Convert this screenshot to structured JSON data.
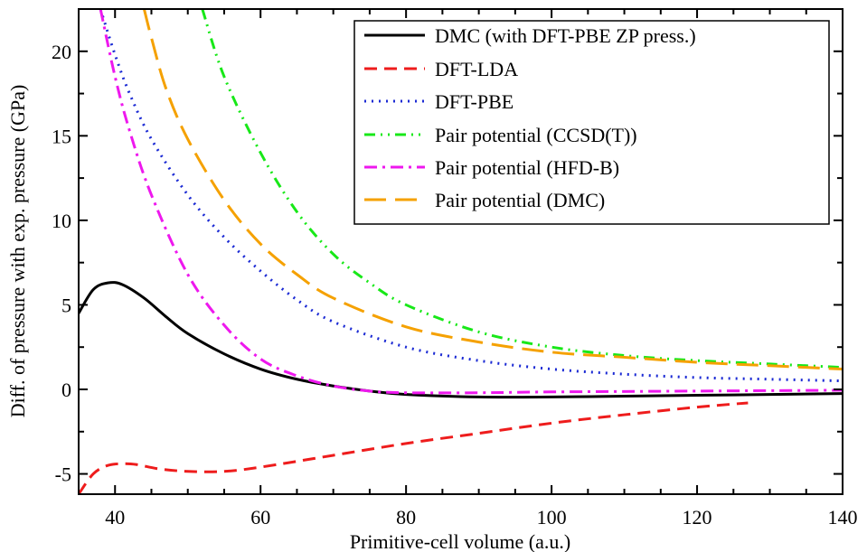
{
  "chart_data": {
    "type": "line",
    "title": "",
    "xlabel": "Primitive-cell volume (a.u.)",
    "ylabel": "Diff. of pressure with exp. pressure (GPa)",
    "xlim": [
      35,
      140
    ],
    "ylim": [
      -6.2,
      22.5
    ],
    "x_ticks": [
      40,
      60,
      80,
      100,
      120,
      140
    ],
    "y_ticks": [
      -5,
      0,
      5,
      10,
      15,
      20
    ],
    "x_tick_labels": [
      "40",
      "60",
      "80",
      "100",
      "120",
      "140"
    ],
    "y_tick_labels": [
      "-5",
      "0",
      "5",
      "10",
      "15",
      "20"
    ],
    "grid": false,
    "legend_position": "top-right",
    "series": [
      {
        "name": "DMC (with DFT-PBE ZP press.)",
        "color": "#000000",
        "dash": "solid",
        "x": [
          35,
          37,
          39,
          41,
          44,
          47,
          50,
          55,
          60,
          65,
          70,
          75,
          80,
          90,
          100,
          110,
          120,
          130,
          140
        ],
        "y": [
          4.5,
          5.9,
          6.3,
          6.2,
          5.4,
          4.3,
          3.3,
          2.1,
          1.2,
          0.6,
          0.2,
          -0.1,
          -0.3,
          -0.45,
          -0.45,
          -0.4,
          -0.35,
          -0.3,
          -0.25
        ]
      },
      {
        "name": "DFT-LDA",
        "color": "#ee1c1c",
        "dash": "dash",
        "x": [
          35,
          37,
          39,
          41,
          43,
          46,
          50,
          55,
          60,
          70,
          80,
          90,
          100,
          110,
          120,
          127
        ],
        "y": [
          -6.2,
          -5.0,
          -4.5,
          -4.4,
          -4.45,
          -4.7,
          -4.85,
          -4.85,
          -4.6,
          -3.9,
          -3.2,
          -2.6,
          -2.0,
          -1.5,
          -1.05,
          -0.8
        ]
      },
      {
        "name": "DFT-PBE",
        "color": "#1c2bd4",
        "dash": "dot",
        "x": [
          38,
          40,
          42,
          45,
          50,
          55,
          60,
          65,
          70,
          80,
          90,
          100,
          110,
          120,
          130,
          140
        ],
        "y": [
          22.5,
          19.8,
          17.5,
          14.8,
          11.5,
          9.0,
          7.0,
          5.3,
          4.0,
          2.5,
          1.7,
          1.2,
          0.9,
          0.7,
          0.6,
          0.5
        ]
      },
      {
        "name": "Pair potential (CCSD(T))",
        "color": "#18e818",
        "dash": "dashdotdot",
        "x": [
          52,
          55,
          60,
          65,
          70,
          75,
          80,
          90,
          100,
          110,
          120,
          130,
          140
        ],
        "y": [
          22.5,
          18.5,
          14.0,
          10.5,
          8.0,
          6.3,
          5.0,
          3.4,
          2.5,
          2.0,
          1.7,
          1.5,
          1.3
        ]
      },
      {
        "name": "Pair potential (HFD-B)",
        "color": "#ee18ee",
        "dash": "dashdot",
        "x": [
          38,
          40,
          42,
          45,
          50,
          55,
          60,
          65,
          70,
          75,
          80,
          90,
          100,
          120,
          140
        ],
        "y": [
          22.5,
          18.5,
          15.3,
          11.5,
          6.8,
          3.8,
          1.8,
          0.8,
          0.2,
          -0.1,
          -0.2,
          -0.2,
          -0.15,
          -0.1,
          -0.05
        ]
      },
      {
        "name": "Pair potential (DMC)",
        "color": "#f5a100",
        "dash": "longdash",
        "x": [
          44,
          45,
          47,
          50,
          55,
          60,
          65,
          70,
          80,
          90,
          100,
          110,
          120,
          130,
          140
        ],
        "y": [
          22.5,
          20.8,
          17.8,
          14.8,
          11.2,
          8.6,
          6.8,
          5.4,
          3.7,
          2.8,
          2.2,
          1.9,
          1.6,
          1.4,
          1.2
        ]
      }
    ]
  }
}
